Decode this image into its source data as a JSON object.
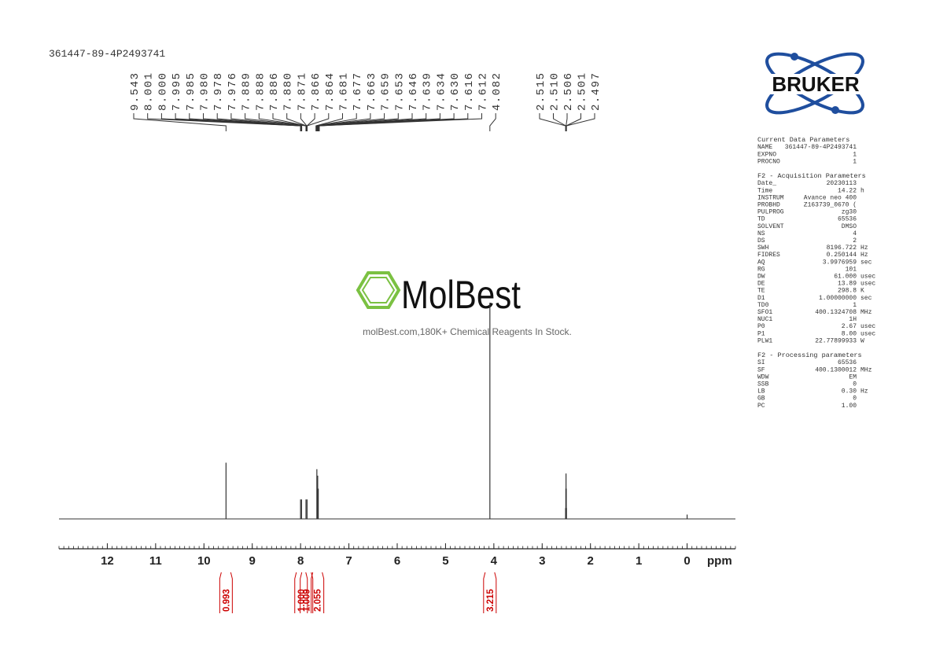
{
  "header": {
    "sample": "361447-89-4P2493741"
  },
  "watermark": {
    "brand": "MolBest",
    "tagline": "molBest.com,180K+ Chemical Reagents In Stock."
  },
  "logo": {
    "text": "BRUKER"
  },
  "parameters": [
    {
      "title": "Current Data Parameters",
      "rows": [
        [
          "NAME",
          "361447-89-4P2493741"
        ],
        [
          "EXPNO",
          "1"
        ],
        [
          "PROCNO",
          "1"
        ]
      ]
    },
    {
      "title": "F2 - Acquisition Parameters",
      "rows": [
        [
          "Date_",
          "20230113"
        ],
        [
          "Time",
          "14.22",
          "h"
        ],
        [
          "INSTRUM",
          "Avance neo 400"
        ],
        [
          "PROBHD",
          "Z163739_0670 ("
        ],
        [
          "PULPROG",
          "zg30"
        ],
        [
          "TD",
          "65536"
        ],
        [
          "SOLVENT",
          "DMSO"
        ],
        [
          "NS",
          "4"
        ],
        [
          "DS",
          "2"
        ],
        [
          "SWH",
          "8196.722",
          "Hz"
        ],
        [
          "FIDRES",
          "0.250144",
          "Hz"
        ],
        [
          "AQ",
          "3.9976959",
          "sec"
        ],
        [
          "RG",
          "101"
        ],
        [
          "DW",
          "61.000",
          "usec"
        ],
        [
          "DE",
          "13.89",
          "usec"
        ],
        [
          "TE",
          "298.8",
          "K"
        ],
        [
          "D1",
          "1.00000000",
          "sec"
        ],
        [
          "TD0",
          "1"
        ],
        [
          "SFO1",
          "400.1324708",
          "MHz"
        ],
        [
          "NUC1",
          "1H"
        ],
        [
          "P0",
          "2.67",
          "usec"
        ],
        [
          "P1",
          "8.00",
          "usec"
        ],
        [
          "PLW1",
          "22.77899933",
          "W"
        ]
      ]
    },
    {
      "title": "F2 - Processing parameters",
      "rows": [
        [
          "SI",
          "65536"
        ],
        [
          "SF",
          "400.1300012",
          "MHz"
        ],
        [
          "WDW",
          "EM"
        ],
        [
          "SSB",
          "0"
        ],
        [
          "LB",
          "0.30",
          "Hz"
        ],
        [
          "GB",
          "0"
        ],
        [
          "PC",
          "1.00"
        ]
      ]
    }
  ],
  "chart_data": {
    "type": "nmr",
    "x_label": "ppm",
    "xlim": [
      13,
      -1
    ],
    "xticks": [
      12,
      11,
      10,
      9,
      8,
      7,
      6,
      5,
      4,
      3,
      2,
      1,
      0
    ],
    "minor_xtick_step": 0.1,
    "color": "#333333",
    "peaks": {
      "x": [
        9.543,
        8.0,
        7.98,
        7.888,
        7.866,
        7.663,
        7.646,
        7.634,
        4.082,
        2.515,
        2.51,
        2.506,
        2.501,
        2.497,
        0
      ],
      "values": [
        26,
        9,
        9,
        9,
        9,
        23,
        20,
        14,
        100,
        5,
        14,
        21,
        14,
        5,
        2
      ]
    },
    "peak_labels": [
      [
        9.543,
        {
          "value": 8.001,
          "label": "8.001"
        },
        {
          "value": 8.0,
          "label": "8.000"
        },
        7.995,
        7.985,
        {
          "value": 7.98,
          "label": "7.980"
        },
        7.978,
        7.976,
        7.889,
        7.888,
        7.886,
        {
          "value": 7.88,
          "label": "7.880"
        },
        7.871,
        7.866,
        7.864,
        7.681,
        7.677,
        7.663,
        7.659,
        7.653,
        7.646,
        7.639,
        7.634,
        {
          "value": 7.63,
          "label": "7.630"
        },
        7.616,
        7.612,
        4.082
      ],
      [
        2.515,
        {
          "value": 2.51,
          "label": "2.510"
        },
        2.506,
        2.501,
        2.497
      ]
    ],
    "integrals": {
      "color": "#cc0000",
      "x": [
        9.543,
        7.99,
        7.877,
        7.65,
        4.082
      ],
      "values": [
        0.993,
        1.0,
        1.009,
        2.055,
        3.215
      ],
      "value_labels": [
        "0.993",
        "1.000",
        "1.009",
        "2.055",
        "3.215"
      ]
    }
  }
}
